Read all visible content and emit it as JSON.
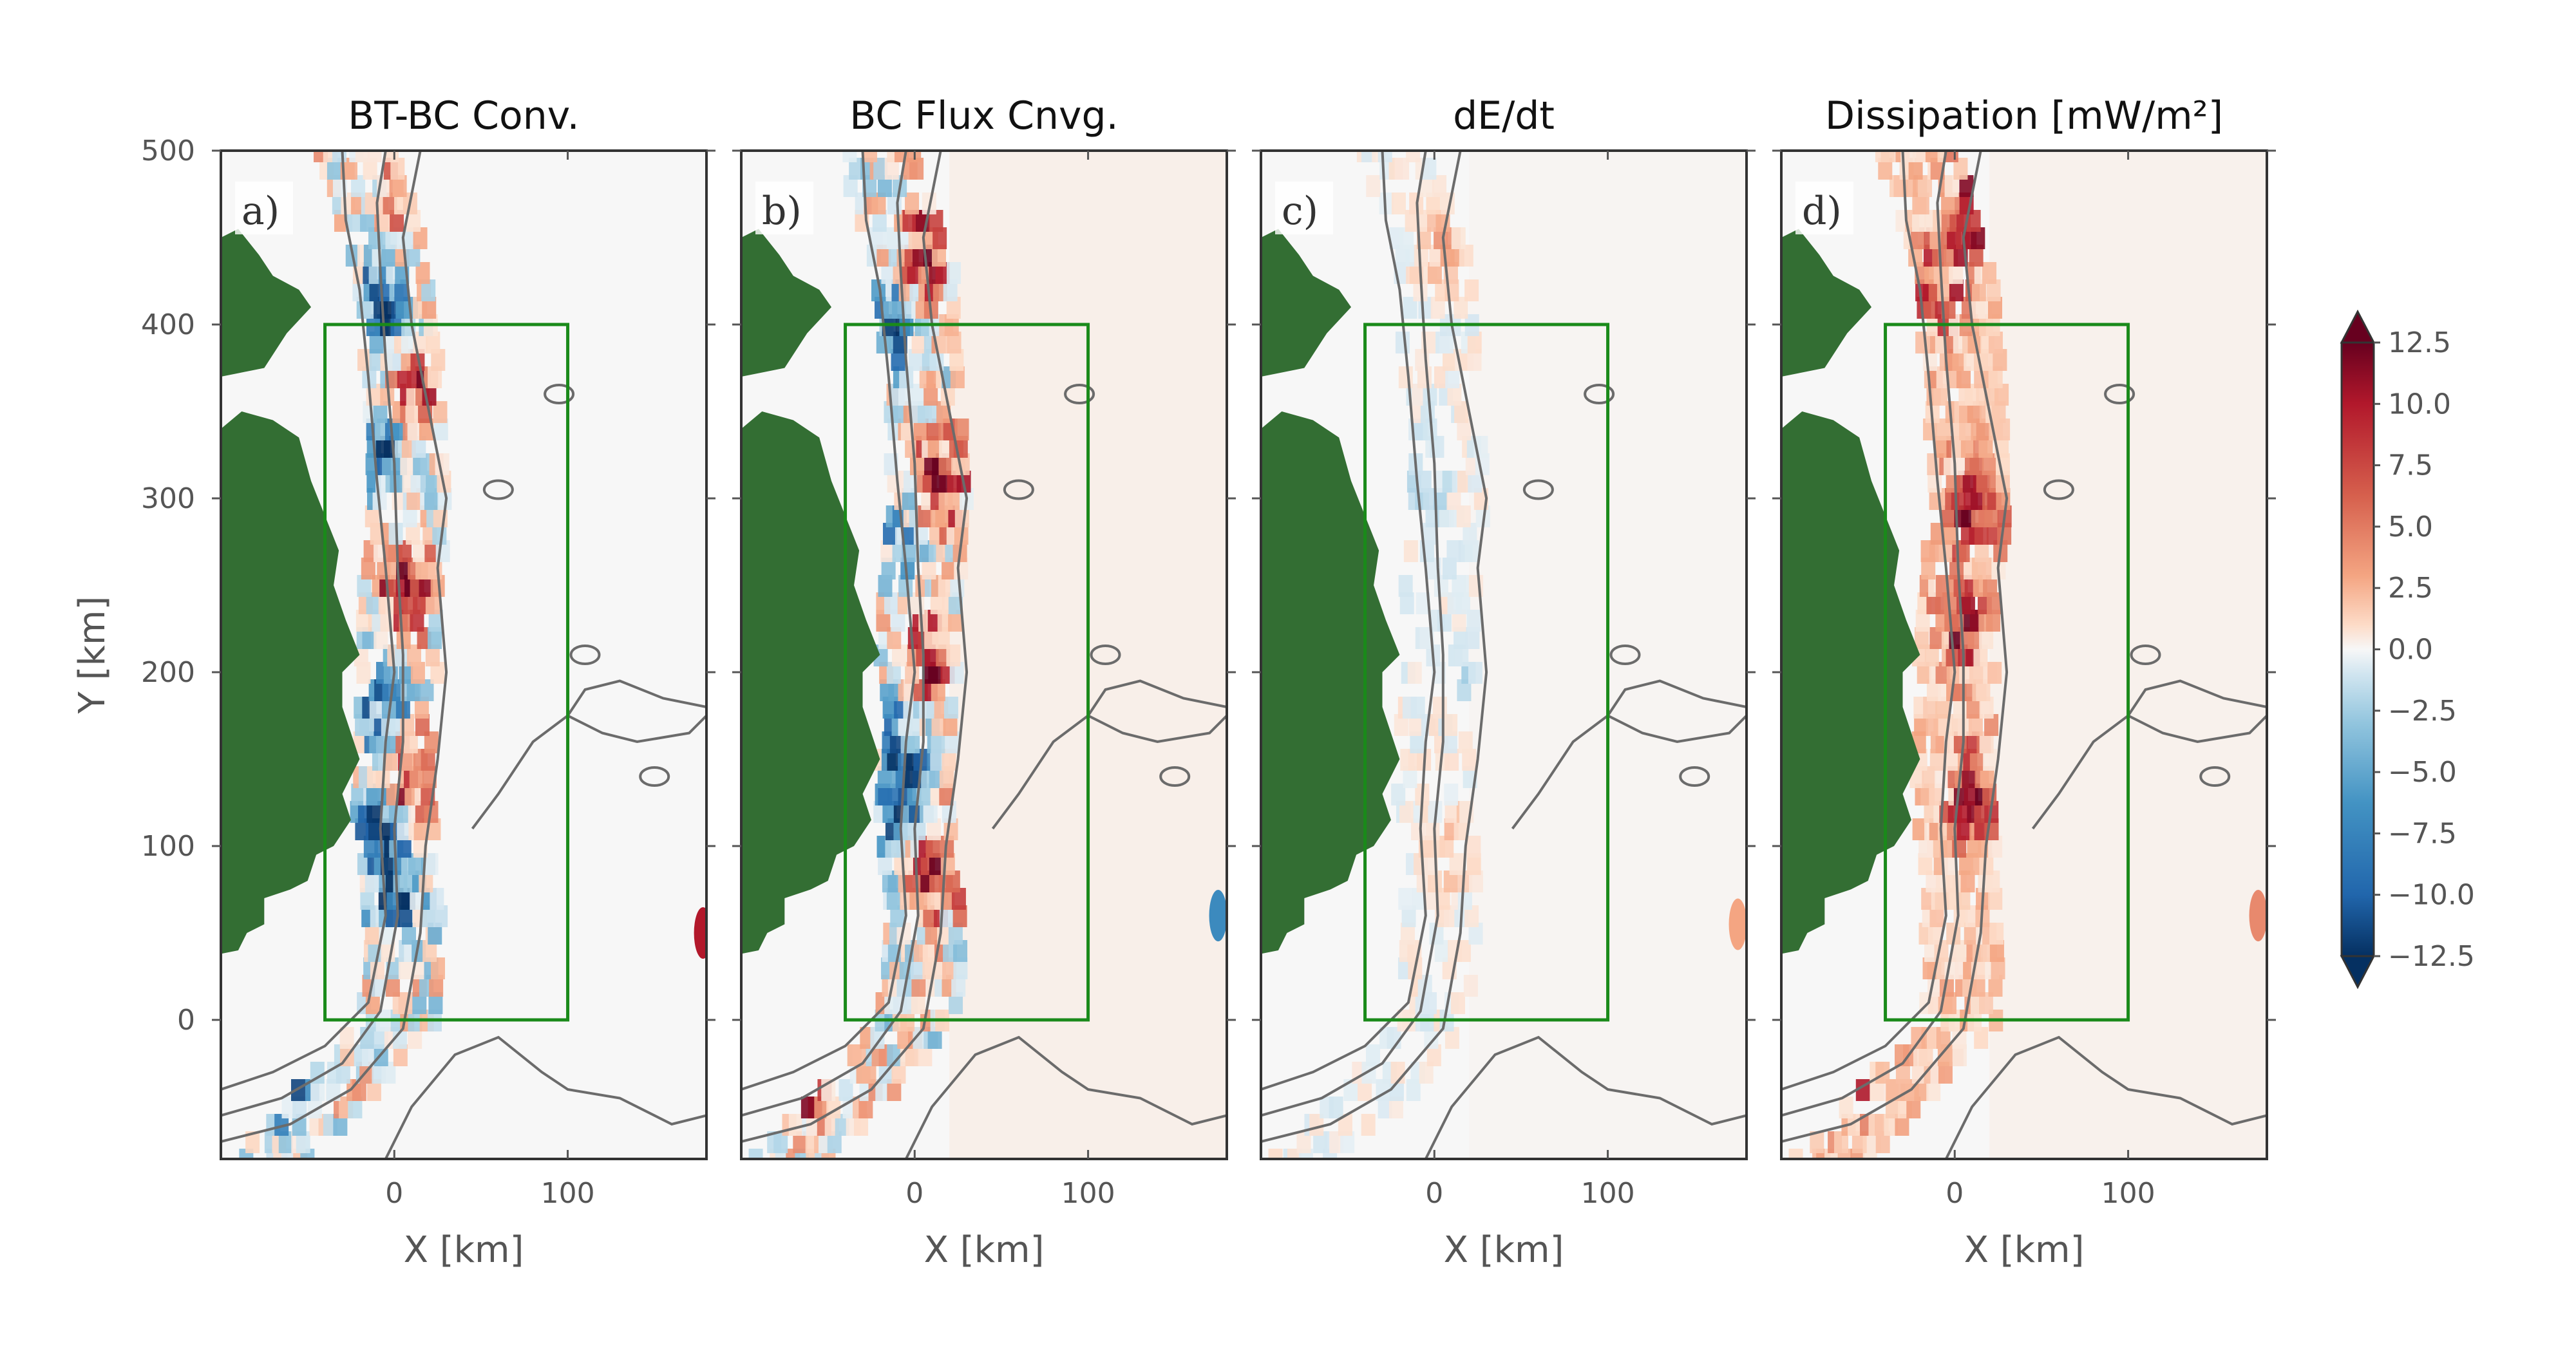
{
  "chart_data": {
    "type": "heatmap",
    "panels": [
      {
        "panel_label": "a)",
        "title": "BT-BC Conv.",
        "coast_side": "",
        "dipoles": [
          [
            7,
            480,
            8
          ],
          [
            -8,
            410,
            -11
          ],
          [
            10,
            360,
            9
          ],
          [
            -6,
            330,
            -10
          ],
          [
            6,
            250,
            11
          ],
          [
            -4,
            180,
            -10
          ],
          [
            8,
            140,
            12
          ],
          [
            -6,
            110,
            -11
          ],
          [
            2,
            75,
            -9
          ],
          [
            178,
            50,
            10
          ],
          [
            -60,
            -35,
            -7
          ]
        ],
        "offshore": 0
      },
      {
        "panel_label": "b)",
        "title": "BC Flux Cnvg.",
        "dipoles": [
          [
            8,
            440,
            12
          ],
          [
            -10,
            400,
            -8
          ],
          [
            14,
            310,
            12
          ],
          [
            -8,
            280,
            -6
          ],
          [
            10,
            210,
            10
          ],
          [
            -4,
            160,
            -8
          ],
          [
            12,
            90,
            11
          ],
          [
            -6,
            120,
            -9
          ],
          [
            -60,
            -30,
            10
          ],
          [
            175,
            60,
            -8
          ]
        ],
        "offshore": 2.5
      },
      {
        "panel_label": "c)",
        "title": "dE/dt",
        "dipoles": [
          [
            6,
            450,
            4
          ],
          [
            -6,
            300,
            -3
          ],
          [
            20,
            200,
            -2
          ],
          [
            10,
            100,
            3
          ],
          [
            175,
            55,
            5
          ]
        ],
        "offshore": 1
      },
      {
        "panel_label": "d)",
        "title": "Dissipation [mW/m²]",
        "dipoles": [
          [
            10,
            470,
            12
          ],
          [
            -8,
            420,
            10
          ],
          [
            12,
            300,
            12
          ],
          [
            4,
            230,
            11
          ],
          [
            10,
            130,
            12
          ],
          [
            -60,
            -30,
            8
          ],
          [
            175,
            60,
            6
          ]
        ],
        "offshore": 2
      }
    ],
    "xlabel": "X [km]",
    "ylabel": "Y [km]",
    "xlim": [
      -100,
      180
    ],
    "ylim": [
      -80,
      500
    ],
    "xticks": [
      0,
      100
    ],
    "yticks": [
      0,
      100,
      200,
      300,
      400,
      500
    ],
    "box": {
      "x": [
        -40,
        100
      ],
      "y": [
        0,
        400
      ]
    },
    "colorbar": {
      "ticks": [
        "12.5",
        "10.0",
        "7.5",
        "5.0",
        "2.5",
        "0.0",
        "−2.5",
        "−5.0",
        "−7.5",
        "−10.0",
        "−12.5"
      ],
      "vmin": -12.5,
      "vmax": 12.5,
      "colormap": "RdBu_r"
    }
  },
  "colors": {
    "land": "#336e33",
    "contour": "#6b6b6b",
    "box": "#1a8a1a",
    "background": "#f7f7f7"
  }
}
